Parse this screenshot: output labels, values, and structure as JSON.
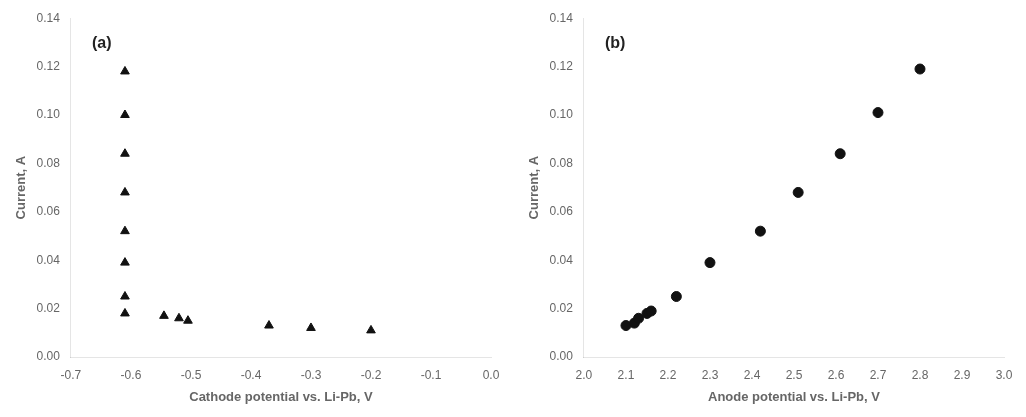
{
  "chart_data": [
    {
      "type": "scatter",
      "annotations": [
        "(a)"
      ],
      "x_label": "Cathode potential vs. Li-Pb, V",
      "y_label": "Current, A",
      "x": [
        -0.61,
        -0.61,
        -0.61,
        -0.61,
        -0.61,
        -0.61,
        -0.61,
        -0.61,
        -0.545,
        -0.52,
        -0.505,
        -0.37,
        -0.3,
        -0.2
      ],
      "values": [
        0.118,
        0.1,
        0.084,
        0.068,
        0.052,
        0.039,
        0.025,
        0.018,
        0.017,
        0.016,
        0.015,
        0.013,
        0.012,
        0.011
      ],
      "marker": "triangle",
      "color": "#111111",
      "xlim": [
        -0.7,
        0.0
      ],
      "ylim": [
        0.0,
        0.14
      ],
      "xticks": [
        -0.7,
        -0.6,
        -0.5,
        -0.4,
        -0.3,
        -0.2,
        -0.1,
        {
          "value": 0.0,
          "label": "0.0"
        }
      ],
      "yticks": [
        {
          "value": 0.0,
          "label": "0.00"
        },
        0.02,
        0.04,
        0.06,
        0.08,
        {
          "value": 0.1,
          "label": "0.10"
        },
        0.12,
        0.14
      ],
      "grid": false
    },
    {
      "type": "scatter",
      "annotations": [
        "(b)"
      ],
      "x_label": "Anode potential vs. Li-Pb, V",
      "y_label": "Current, A",
      "x": [
        2.1,
        2.12,
        2.13,
        2.15,
        2.16,
        2.22,
        2.3,
        2.42,
        2.51,
        2.61,
        2.7,
        2.8
      ],
      "values": [
        0.013,
        0.014,
        0.016,
        0.018,
        0.019,
        0.025,
        0.039,
        0.052,
        0.068,
        0.084,
        0.101,
        0.119
      ],
      "marker": "circle",
      "color": "#111111",
      "xlim": [
        2.0,
        3.0
      ],
      "ylim": [
        0.0,
        0.14
      ],
      "xticks": [
        {
          "value": 2.0,
          "label": "2.0"
        },
        2.1,
        2.2,
        2.3,
        2.4,
        2.5,
        2.6,
        2.7,
        2.8,
        2.9,
        {
          "value": 3.0,
          "label": "3.0"
        }
      ],
      "yticks": [
        {
          "value": 0.0,
          "label": "0.00"
        },
        0.02,
        0.04,
        0.06,
        0.08,
        {
          "value": 0.1,
          "label": "0.10"
        },
        0.12,
        0.14
      ],
      "grid": false
    }
  ]
}
